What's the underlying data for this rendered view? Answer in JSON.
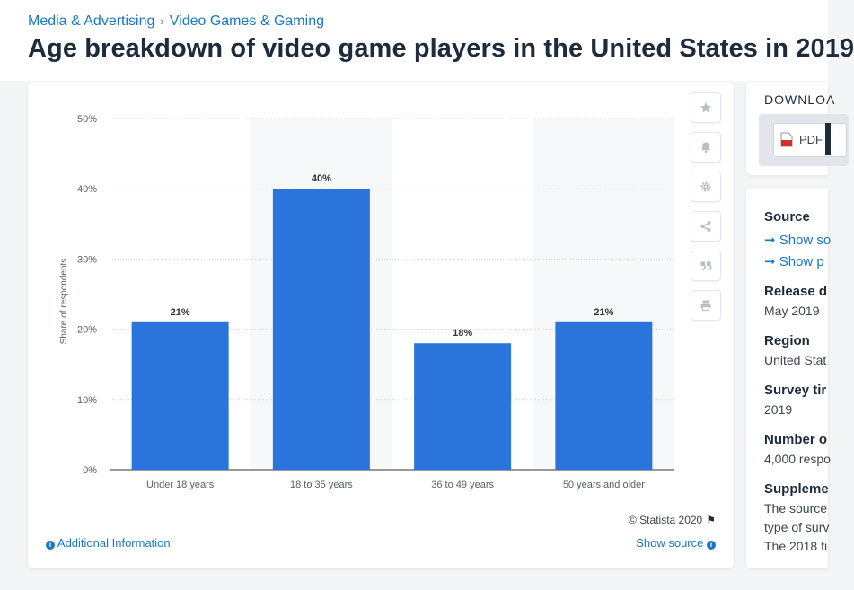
{
  "breadcrumb": {
    "items": [
      "Media & Advertising",
      "Video Games & Gaming"
    ],
    "separator": "›"
  },
  "page_title": "Age breakdown of video game players in the United States in 2019",
  "chart_data": {
    "type": "bar",
    "categories": [
      "Under 18 years",
      "18 to 35 years",
      "36 to 49 years",
      "50 years and older"
    ],
    "values": [
      21,
      40,
      18,
      21
    ],
    "value_labels": [
      "21%",
      "40%",
      "18%",
      "21%"
    ],
    "ylabel": "Share of respondents",
    "ylim": [
      0,
      50
    ],
    "yticks": [
      0,
      10,
      20,
      30,
      40,
      50
    ],
    "ytick_labels": [
      "0%",
      "10%",
      "20%",
      "30%",
      "40%",
      "50%"
    ],
    "bar_color": "#2a74db",
    "grid": true
  },
  "chart_footer": {
    "copyright": "© Statista 2020",
    "additional_info": "Additional Information",
    "show_source": "Show source"
  },
  "tools": [
    {
      "name": "star-icon"
    },
    {
      "name": "bell-icon"
    },
    {
      "name": "gear-icon"
    },
    {
      "name": "share-icon"
    },
    {
      "name": "quote-icon"
    },
    {
      "name": "print-icon"
    }
  ],
  "download_panel": {
    "title": "DOWNLOA",
    "pdf_label": "PDF"
  },
  "info_panel": {
    "source_label": "Source",
    "source_links": [
      "➞ Show so",
      "➞ Show p"
    ],
    "release_label": "Release d",
    "release_value": "May 2019",
    "region_label": "Region",
    "region_value": "United Stat",
    "survey_label": "Survey tir",
    "survey_value": "2019",
    "number_label": "Number o",
    "number_value": "4,000 respo",
    "supplement_label": "Suppleme",
    "supplement_lines": [
      "The source",
      "type of surv",
      "The 2018 fi"
    ]
  },
  "colors": {
    "accent": "#1a78c2",
    "bar": "#2a74db",
    "title": "#1d2b3a"
  }
}
